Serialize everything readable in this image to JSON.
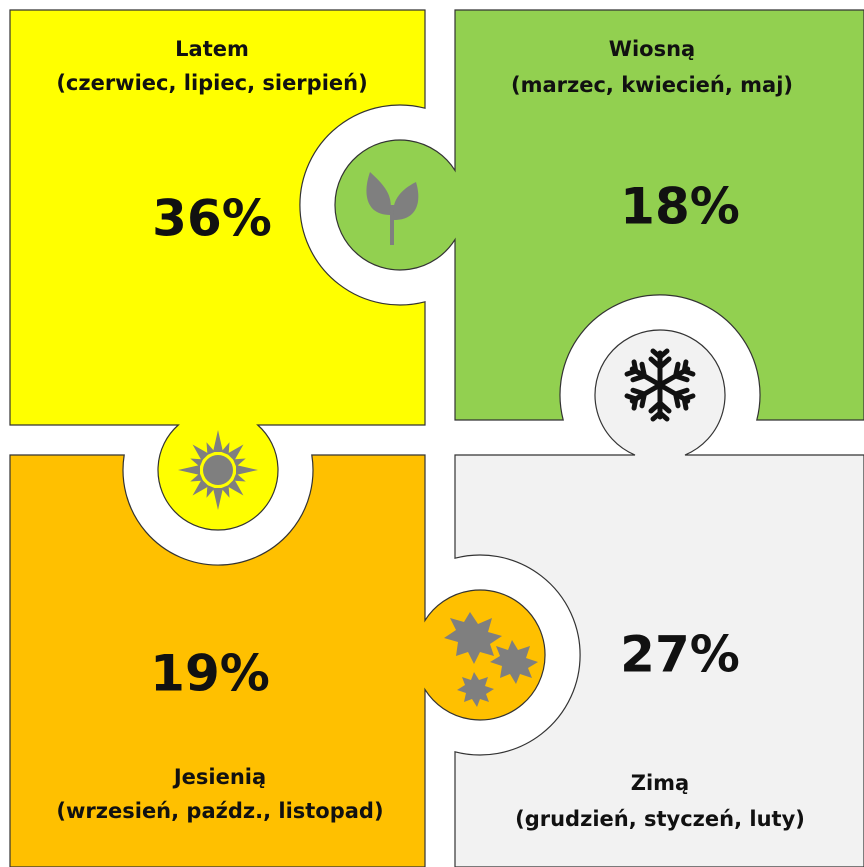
{
  "pieces": [
    {
      "title": "Latem",
      "months": "(czerwiec, lipiec, sierpień)",
      "value": "36%"
    },
    {
      "title": "Wiosną",
      "months": "(marzec, kwiecień, maj)",
      "value": "18%"
    },
    {
      "title": "Jesienią",
      "months": "(wrzesień, paźdz., listopad)",
      "value": "19%"
    },
    {
      "title": "Zimą",
      "months": "(grudzień, styczeń, luty)",
      "value": "27%"
    }
  ]
}
